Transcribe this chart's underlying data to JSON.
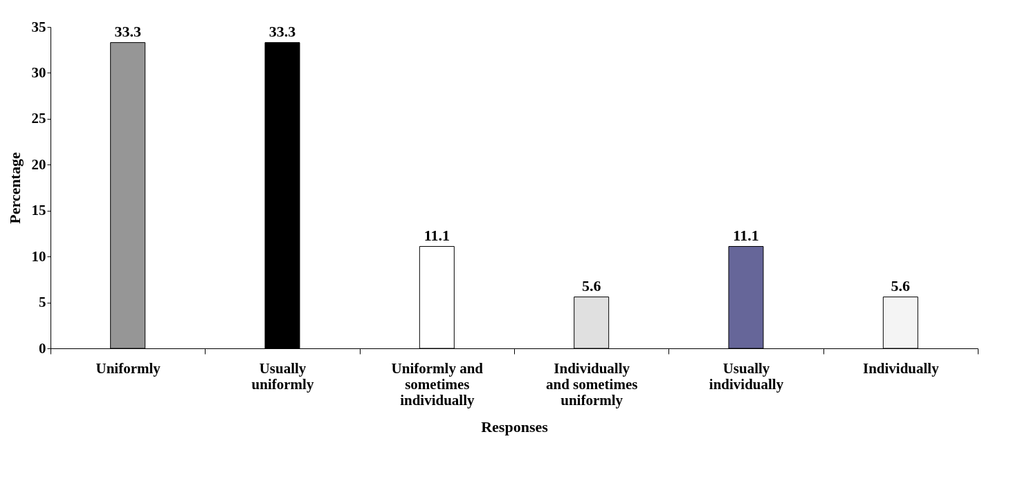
{
  "chart_data": {
    "type": "bar",
    "xlabel": "Responses",
    "ylabel": "Percentage",
    "categories": [
      "Uniformly",
      "Usually uniformly",
      "Uniformly and sometimes individually",
      "Individually and sometimes uniformly",
      "Usually individually",
      "Individually"
    ],
    "values": [
      33.3,
      33.3,
      11.1,
      5.6,
      11.1,
      5.6
    ],
    "colors": [
      "#969696",
      "#000000",
      "#ffffff",
      "#e0e0e0",
      "#666699",
      "#f4f4f4"
    ],
    "ylim": [
      0,
      35
    ],
    "yticks": [
      0,
      5,
      10,
      15,
      20,
      25,
      30,
      35
    ],
    "grid": false,
    "data_labels": true
  }
}
